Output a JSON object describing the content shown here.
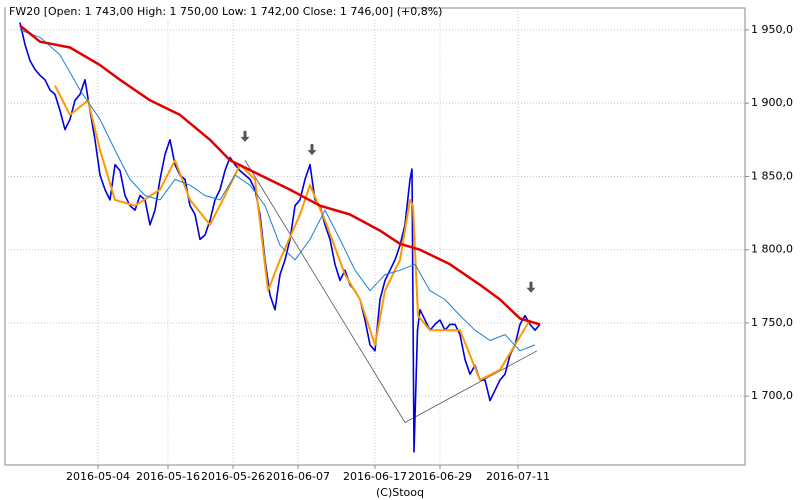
{
  "chart_data": {
    "type": "line",
    "title": "FW20 [Open: 1 743,00  High: 1 750,00  Low: 1 742,00  Close: 1 746,00] (+0,8%)",
    "footer": "(C)Stooq",
    "xlim": [
      0,
      148
    ],
    "ylim": [
      1653,
      1965
    ],
    "grid": true,
    "xticks": [
      {
        "value": 18.6,
        "label": "2016-05-04"
      },
      {
        "value": 32.6,
        "label": "2016-05-16"
      },
      {
        "value": 45.6,
        "label": "2016-05-26"
      },
      {
        "value": 58.6,
        "label": "2016-06-07"
      },
      {
        "value": 74,
        "label": "2016-06-17"
      },
      {
        "value": 87,
        "label": "2016-06-29"
      },
      {
        "value": 102.6,
        "label": "2016-07-11"
      }
    ],
    "yticks": [
      {
        "value": 1700,
        "label": "1 700,0"
      },
      {
        "value": 1750,
        "label": "1 750,0"
      },
      {
        "value": 1800,
        "label": "1 800,0"
      },
      {
        "value": 1850,
        "label": "1 850,0"
      },
      {
        "value": 1900,
        "label": "1 900,0"
      },
      {
        "value": 1950,
        "label": "1 950,0"
      }
    ],
    "series": [
      {
        "color": "#555555",
        "width": 0.8,
        "x": [
          48,
          80,
          106.4
        ],
        "values": [
          1861,
          1682,
          1731
        ]
      },
      {
        "color": "#0000dd",
        "width": 1.6,
        "x": [
          3,
          4,
          5,
          6,
          7,
          8,
          9,
          10,
          11,
          12,
          13,
          14,
          15,
          16,
          17,
          18,
          19,
          20,
          21,
          22,
          23,
          24,
          25,
          26,
          27,
          28,
          29,
          30,
          31,
          32,
          33,
          34,
          35,
          36,
          37,
          38,
          39,
          40,
          41,
          42,
          43,
          44,
          45,
          46,
          47,
          48,
          49,
          50,
          51,
          52,
          53,
          54,
          55,
          56,
          57,
          58,
          59,
          60,
          61,
          62,
          63,
          64,
          65,
          66,
          67,
          68,
          69,
          70,
          71,
          72,
          73,
          74,
          75,
          76,
          77,
          78,
          79,
          80,
          81,
          81.4,
          81.8,
          82.5,
          83,
          84,
          85,
          86,
          87,
          88,
          89,
          90,
          91,
          92,
          93,
          94,
          95,
          96,
          97,
          98,
          99,
          100,
          101,
          102,
          103,
          104,
          105,
          106,
          107
        ],
        "values": [
          1955,
          1940,
          1929,
          1923,
          1919,
          1916,
          1909,
          1906,
          1895,
          1882,
          1889,
          1902,
          1906,
          1916,
          1895,
          1875,
          1851,
          1841,
          1834,
          1858,
          1854,
          1837,
          1830,
          1827,
          1837,
          1834,
          1817,
          1827,
          1848,
          1865,
          1875,
          1858,
          1851,
          1848,
          1830,
          1824,
          1807,
          1810,
          1820,
          1834,
          1841,
          1854,
          1863,
          1858,
          1854,
          1851,
          1848,
          1841,
          1824,
          1793,
          1769,
          1759,
          1783,
          1793,
          1807,
          1830,
          1834,
          1848,
          1858,
          1834,
          1830,
          1817,
          1807,
          1790,
          1779,
          1786,
          1776,
          1772,
          1766,
          1752,
          1735,
          1731,
          1766,
          1779,
          1786,
          1793,
          1803,
          1817,
          1848,
          1855,
          1662,
          1745,
          1759,
          1752,
          1745,
          1749,
          1752,
          1745,
          1749,
          1749,
          1742,
          1725,
          1715,
          1721,
          1711,
          1711,
          1697,
          1704,
          1711,
          1715,
          1728,
          1735,
          1749,
          1755,
          1749,
          1745,
          1749
        ]
      },
      {
        "color": "#ff9900",
        "width": 2,
        "x": [
          10,
          13,
          16.6,
          19,
          22,
          26,
          31,
          34,
          37,
          41,
          44,
          47,
          50,
          52.6,
          55,
          59,
          61,
          64,
          68,
          71,
          74,
          76,
          79,
          81,
          81.6,
          82.6,
          85,
          91,
          95,
          99,
          102,
          105
        ],
        "values": [
          1912,
          1892,
          1902,
          1868,
          1834,
          1830,
          1841,
          1861,
          1834,
          1817,
          1837,
          1858,
          1848,
          1772,
          1793,
          1824,
          1844,
          1820,
          1783,
          1766,
          1735,
          1772,
          1793,
          1834,
          1830,
          1755,
          1745,
          1745,
          1711,
          1718,
          1735,
          1752
        ]
      },
      {
        "color": "#1e7fd0",
        "width": 1,
        "x": [
          3,
          7,
          11,
          15,
          19,
          22,
          25,
          28,
          31,
          34,
          37,
          40,
          43,
          46,
          49,
          52,
          55,
          58,
          61,
          64,
          67,
          70,
          73,
          76,
          79,
          82,
          85,
          88,
          91,
          94,
          97,
          100,
          103,
          106
        ],
        "values": [
          1950,
          1945,
          1933,
          1909,
          1889,
          1868,
          1848,
          1837,
          1834,
          1848,
          1844,
          1837,
          1834,
          1851,
          1844,
          1830,
          1803,
          1793,
          1807,
          1827,
          1807,
          1786,
          1772,
          1783,
          1786,
          1790,
          1772,
          1766,
          1755,
          1745,
          1738,
          1742,
          1731,
          1735
        ]
      },
      {
        "color": "#e00000",
        "width": 2.5,
        "x": [
          3,
          7,
          13,
          19,
          23,
          29,
          35,
          41,
          45,
          51,
          57,
          63,
          69,
          75,
          79,
          83,
          89,
          95,
          99,
          103,
          107
        ],
        "values": [
          1953,
          1942,
          1938,
          1926,
          1916,
          1902,
          1892,
          1875,
          1861,
          1851,
          1841,
          1830,
          1824,
          1813,
          1804,
          1800,
          1790,
          1776,
          1766,
          1753,
          1749
        ]
      }
    ],
    "arrows": [
      {
        "x": 48,
        "y": 1877
      },
      {
        "x": 61.4,
        "y": 1868
      },
      {
        "x": 105.2,
        "y": 1774
      }
    ]
  }
}
